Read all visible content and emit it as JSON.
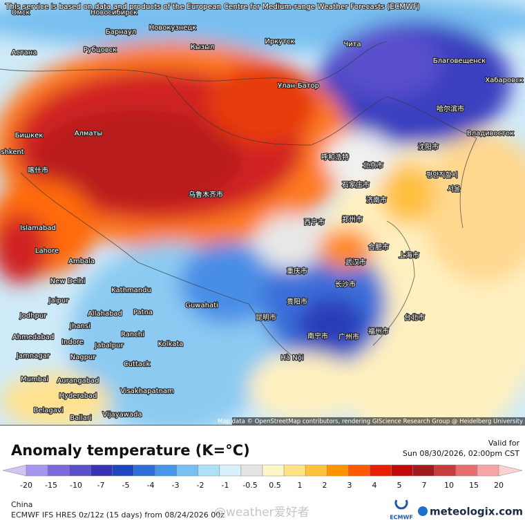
{
  "header": {
    "notice": "This service is based on data and products of the European Centre for Medium-range Weather Forecasts (ECMWF)"
  },
  "map": {
    "labels": [
      "Омск",
      "Новосибирск",
      "Барнаул",
      "Новокузнецк",
      "Астана",
      "Рубцовск",
      "Кызыл",
      "Иркутск",
      "Чита",
      "Благовещенск",
      "Хабаровск",
      "Улан-Батор",
      "Бишкек",
      "Алматы",
      "shkent",
      "喀什市",
      "乌鲁木齐市",
      "哈尔滨市",
      "Владивосток",
      "沈阳市",
      "呼和浩特",
      "北京市",
      "평양직할시",
      "石家庄市",
      "济南市",
      "서울",
      "郑州市",
      "西宁市",
      "合肥市",
      "上海市",
      "武汉市",
      "重庆市",
      "长沙市",
      "贵阳市",
      "福州市",
      "台北市",
      "昆明市",
      "南宁市",
      "广州市",
      "Hà Nội",
      "Islamabad",
      "Lahore",
      "Ambala",
      "New Delhi",
      "Kathmandu",
      "Guwahati",
      "Jaipur",
      "Jodhpur",
      "Jhansi",
      "Allahabad",
      "Patna",
      "Ranchi",
      "Kolkata",
      "Ahmedabad",
      "Indore",
      "Jabalpur",
      "Jamnagar",
      "Nagpur",
      "Cuttack",
      "Mumbai",
      "Aurangabad",
      "Hyderabad",
      "Visakhapatnam",
      "Belagavi",
      "Ballari",
      "Vijayawada"
    ],
    "attribution": "Map data © OpenStreetMap contributors, rendering GIScience Research Group @ Heidelberg University"
  },
  "legend": {
    "title": "Anomaly temperature (K=°C)",
    "valid_label": "Valid for",
    "valid_time": "Sun 08/30/2026, 02:00pm CST",
    "ticks": [
      "-20",
      "-15",
      "-10",
      "-7",
      "-5",
      "-4",
      "-3",
      "-2",
      "-1",
      "-0.5",
      "0.5",
      "1",
      "2",
      "3",
      "4",
      "5",
      "7",
      "10",
      "15",
      "20"
    ],
    "colors": [
      "#d2c3f5",
      "#a696f0",
      "#7a6ade",
      "#5a50cc",
      "#3a32b4",
      "#1e46c0",
      "#2e6ed8",
      "#4696ea",
      "#78c0f2",
      "#aee0f8",
      "#d8f0fc",
      "#e4e4e4",
      "#fff6c8",
      "#ffe284",
      "#ffc23a",
      "#ff9400",
      "#ff5a00",
      "#e62000",
      "#c00a0a",
      "#a01c1c",
      "#c83c3c",
      "#e66e6e",
      "#f5a5a5",
      "#fad2d2"
    ]
  },
  "footer": {
    "region": "China",
    "model": "ECMWF IFS HRES 0z/12z (15 days) from 08/24/2026 00z",
    "watermark": "@weather爱好者",
    "ecmwf_logo": "ECMWF",
    "site": "meteologix.com"
  }
}
